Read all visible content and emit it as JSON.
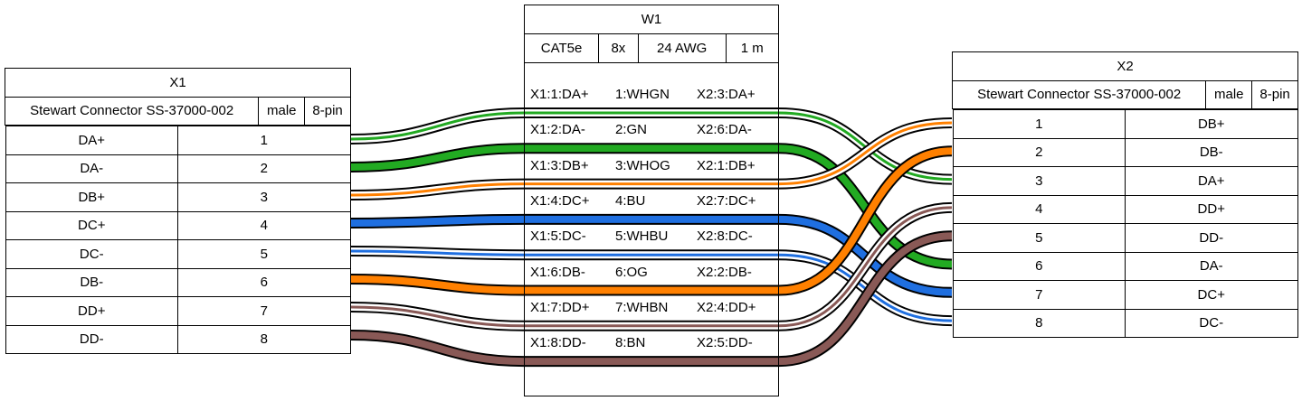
{
  "x1": {
    "title": "X1",
    "part": "Stewart Connector SS-37000-002",
    "gender": "male",
    "pins_label": "8-pin",
    "rows": [
      {
        "signal": "DA+",
        "pin": "1"
      },
      {
        "signal": "DA-",
        "pin": "2"
      },
      {
        "signal": "DB+",
        "pin": "3"
      },
      {
        "signal": "DC+",
        "pin": "4"
      },
      {
        "signal": "DC-",
        "pin": "5"
      },
      {
        "signal": "DB-",
        "pin": "6"
      },
      {
        "signal": "DD+",
        "pin": "7"
      },
      {
        "signal": "DD-",
        "pin": "8"
      }
    ]
  },
  "x2": {
    "title": "X2",
    "part": "Stewart Connector SS-37000-002",
    "gender": "male",
    "pins_label": "8-pin",
    "rows": [
      {
        "pin": "1",
        "signal": "DB+"
      },
      {
        "pin": "2",
        "signal": "DB-"
      },
      {
        "pin": "3",
        "signal": "DA+"
      },
      {
        "pin": "4",
        "signal": "DD+"
      },
      {
        "pin": "5",
        "signal": "DD-"
      },
      {
        "pin": "6",
        "signal": "DA-"
      },
      {
        "pin": "7",
        "signal": "DC+"
      },
      {
        "pin": "8",
        "signal": "DC-"
      }
    ]
  },
  "w1": {
    "title": "W1",
    "type": "CAT5e",
    "count": "8x",
    "gauge": "24 AWG",
    "length": "1 m",
    "wires": [
      {
        "from": "X1:1:DA+",
        "wire": "1:WHGN",
        "to": "X2:3:DA+",
        "x1_pin": 1,
        "x2_pin": 3,
        "base": "#ffffff",
        "stripe": "#22aa22"
      },
      {
        "from": "X1:2:DA-",
        "wire": "2:GN",
        "to": "X2:6:DA-",
        "x1_pin": 2,
        "x2_pin": 6,
        "base": "#22aa22",
        "stripe": "#22aa22"
      },
      {
        "from": "X1:3:DB+",
        "wire": "3:WHOG",
        "to": "X2:1:DB+",
        "x1_pin": 3,
        "x2_pin": 1,
        "base": "#ffffff",
        "stripe": "#ff8000"
      },
      {
        "from": "X1:4:DC+",
        "wire": "4:BU",
        "to": "X2:7:DC+",
        "x1_pin": 4,
        "x2_pin": 7,
        "base": "#1f6fe0",
        "stripe": "#1f6fe0"
      },
      {
        "from": "X1:5:DC-",
        "wire": "5:WHBU",
        "to": "X2:8:DC-",
        "x1_pin": 5,
        "x2_pin": 8,
        "base": "#ffffff",
        "stripe": "#1f6fe0"
      },
      {
        "from": "X1:6:DB-",
        "wire": "6:OG",
        "to": "X2:2:DB-",
        "x1_pin": 6,
        "x2_pin": 2,
        "base": "#ff8000",
        "stripe": "#ff8000"
      },
      {
        "from": "X1:7:DD+",
        "wire": "7:WHBN",
        "to": "X2:4:DD+",
        "x1_pin": 7,
        "x2_pin": 4,
        "base": "#ffffff",
        "stripe": "#895956"
      },
      {
        "from": "X1:8:DD-",
        "wire": "8:BN",
        "to": "X2:5:DD-",
        "x1_pin": 8,
        "x2_pin": 5,
        "base": "#895956",
        "stripe": "#895956"
      }
    ]
  }
}
